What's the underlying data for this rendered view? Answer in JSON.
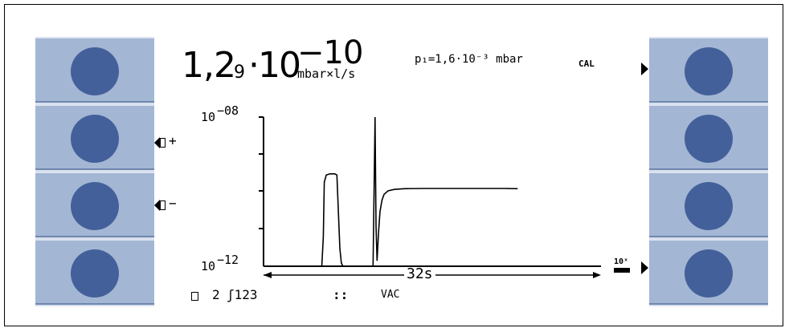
{
  "display": {
    "leak_rate": {
      "mantissa": "1,2",
      "extra_digit": "9",
      "base": "·10",
      "exponent": "−10",
      "unit": "mbar×l/s"
    },
    "pressure": "p₁=1,6·10⁻³ mbar",
    "cal_label": "CAL"
  },
  "volume_buttons": {
    "up_sign": "+",
    "down_sign": "−"
  },
  "chart": {
    "y_max_base": "10",
    "y_max_exp": "−08",
    "y_min_base": "10",
    "y_min_exp": "−12",
    "time_label": "32s",
    "zoom_label": "10ˣ"
  },
  "chart_data": {
    "type": "line",
    "title": "",
    "xlabel": "32s",
    "ylabel": "",
    "yscale": "log",
    "ylim": [
      1e-12,
      1e-08
    ],
    "xlim": [
      0,
      32
    ],
    "series": [
      {
        "name": "",
        "x": [
          0,
          5.8,
          5.95,
          6.05,
          6.25,
          6.6,
          7.1,
          7.3,
          7.6,
          7.75,
          7.9,
          9.5,
          10.9,
          11.1,
          11.2,
          11.3,
          11.45,
          11.6,
          11.8,
          12.0,
          12.4,
          13.0,
          14.0,
          16.0,
          20.0,
          24.0,
          25.3
        ],
        "y": [
          1e-12,
          1e-12,
          6e-12,
          1.8e-10,
          2.8e-10,
          3e-10,
          3e-10,
          2.8e-10,
          3e-12,
          1.2e-12,
          1e-12,
          1e-12,
          1e-12,
          1e-08,
          1.2e-11,
          1.4e-12,
          8e-12,
          3e-11,
          6e-11,
          8.5e-11,
          1.05e-10,
          1.15e-10,
          1.2e-10,
          1.22e-10,
          1.22e-10,
          1.22e-10,
          1.2e-10
        ]
      }
    ]
  },
  "status_bar": {
    "volume": "2",
    "signal": "ʃ123",
    "dots": "::",
    "mode": "VAC"
  },
  "colors": {
    "softkey_panel": "#a3b6d4",
    "softkey_knob": "#43609a",
    "softkey_column_bg": "#d7e0ee",
    "display_bg": "#ffffff",
    "ink": "#000000"
  },
  "icons": [
    "speaker-icon",
    "play-triangle-icon",
    "zoom-icon"
  ]
}
